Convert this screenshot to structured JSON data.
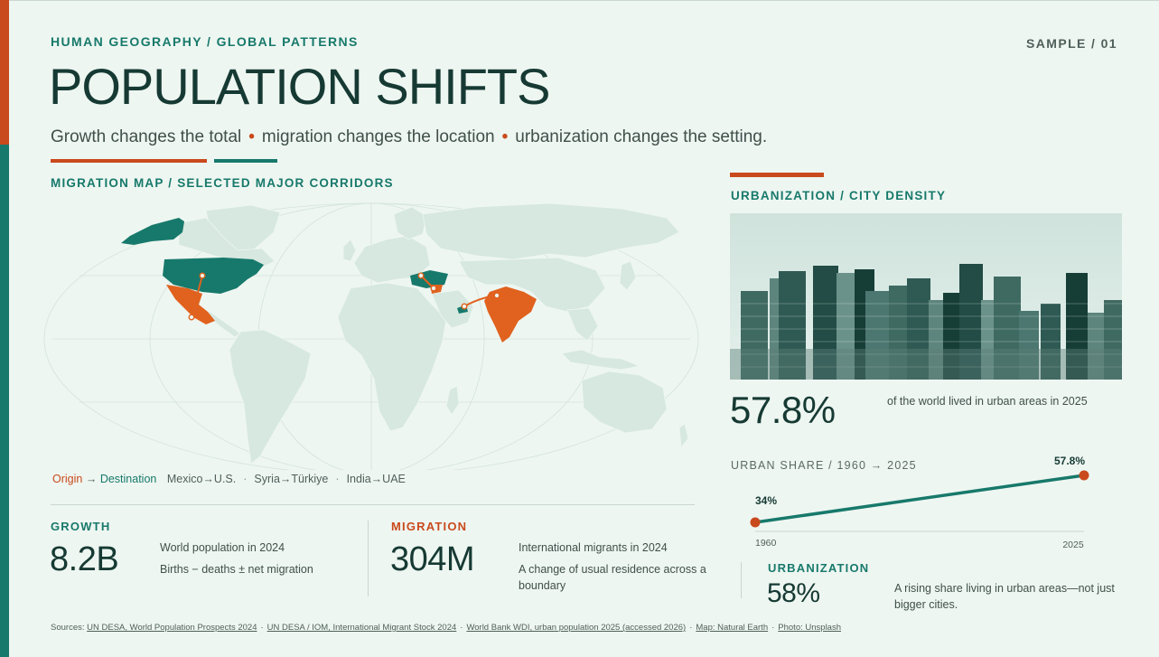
{
  "header": {
    "kicker": "HUMAN GEOGRAPHY / GLOBAL PATTERNS",
    "sample": "SAMPLE / 01",
    "title": "POPULATION SHIFTS",
    "subtitle_parts": [
      "Growth changes the total",
      "migration changes the location",
      "urbanization changes the setting."
    ],
    "subtitle_sep": "•"
  },
  "map": {
    "section_label": "MIGRATION MAP / SELECTED MAJOR CORRIDORS",
    "legend": {
      "origin": "Origin",
      "arrow": "→",
      "destination": "Destination",
      "corridors": [
        "Mexico→U.S.",
        "Syria→Türkiye",
        "India→UAE"
      ],
      "sep": "·"
    }
  },
  "stats": {
    "growth": {
      "label": "GROWTH",
      "value": "8.2B",
      "note1": "World population in 2024",
      "note2": "Births − deaths ± net migration"
    },
    "migration": {
      "label": "MIGRATION",
      "value": "304M",
      "note1": "International migrants in 2024",
      "note2": "A change of usual residence across a boundary"
    },
    "urbanization": {
      "label": "URBANIZATION",
      "value": "58%",
      "note": "A rising share living in urban areas—not just bigger cities."
    }
  },
  "urban": {
    "section_label": "URBANIZATION / CITY DENSITY",
    "big_value": "57.8%",
    "note": "of the world lived in urban areas in 2025",
    "chart_label": "URBAN SHARE / 1960 → 2025"
  },
  "chart_data": {
    "type": "line",
    "x": [
      "1960",
      "2025"
    ],
    "series": [
      {
        "values": [
          34,
          57.8
        ]
      }
    ],
    "data_labels": [
      "34%",
      "57.8%"
    ],
    "title": "URBAN SHARE / 1960 → 2025",
    "xlabel": "",
    "ylabel": "",
    "grid": false
  },
  "sources": {
    "prefix": "Sources:",
    "items": [
      "UN DESA, World Population Prospects 2024",
      "UN DESA / IOM, International Migrant Stock 2024",
      "World Bank WDI, urban population 2025 (accessed 2026)",
      "Map: Natural Earth",
      "Photo: Unsplash"
    ],
    "sep": "·"
  },
  "colors": {
    "teal": "#17796b",
    "orange": "#c94a1c",
    "land": "#d6e8e0",
    "ink": "#163a33"
  }
}
